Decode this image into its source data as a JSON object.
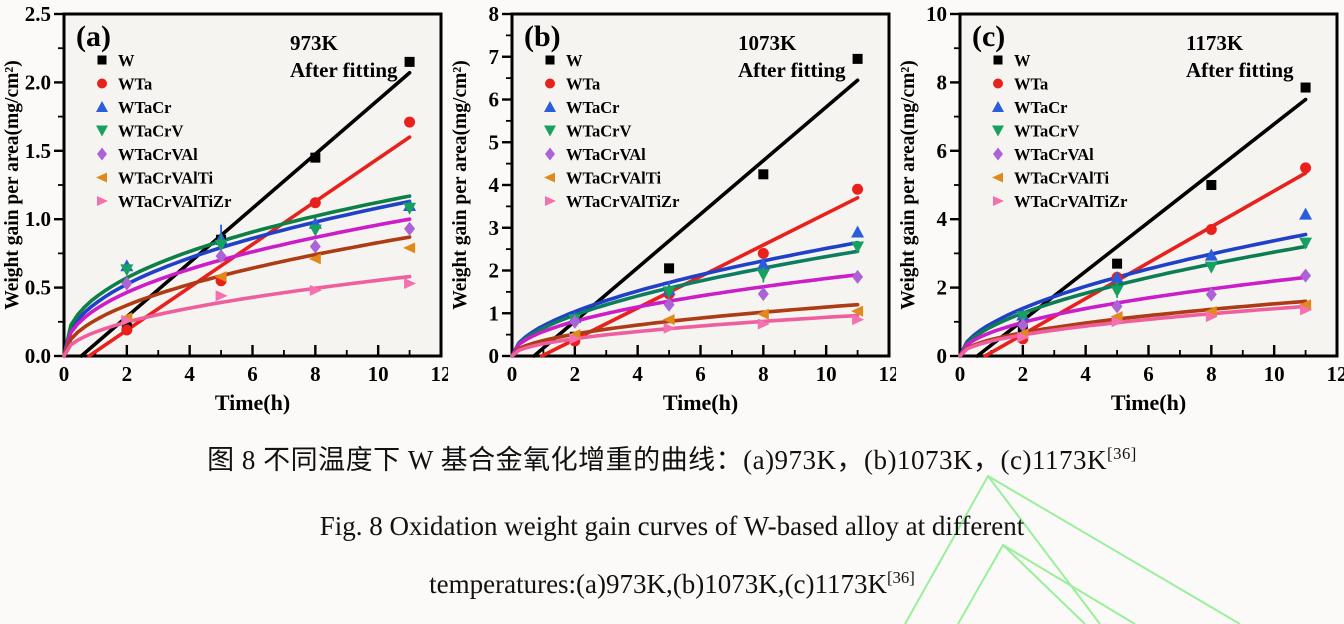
{
  "figure": {
    "caption_zh": "图 8 不同温度下 W 基合金氧化增重的曲线：(a)973K，(b)1073K，(c)1173K",
    "caption_en_line1": "Fig. 8 Oxidation weight gain curves of W-based alloy at different",
    "caption_en_line2": "temperatures:(a)973K,(b)1073K,(c)1173K",
    "ref_sup": "[36]"
  },
  "colors": {
    "plot_bg": "#f6f4f1",
    "frame": "#000000",
    "watermark_green": "#90ee90"
  },
  "chart_data": [
    {
      "type": "scatter",
      "panel_label": "(a)",
      "title": "973K",
      "subtitle": "After fitting",
      "xlabel": "Time(h)",
      "ylabel": "Weight gain per area(mg/cm²)",
      "xlim": [
        0,
        12
      ],
      "ylim": [
        0,
        2.5
      ],
      "x_major": 2,
      "y_major": 0.5,
      "x_ticks": [
        "0",
        "2",
        "4",
        "6",
        "8",
        "10",
        "12"
      ],
      "y_ticks": [
        "0.0",
        "0.5",
        "1.0",
        "1.5",
        "2.0",
        "2.5"
      ],
      "x": [
        2,
        5,
        8,
        11
      ],
      "legend_position": "top-left",
      "grid": false,
      "series": [
        {
          "name": "W",
          "marker": "square",
          "mcolor": "#000000",
          "lcolor": "#000000",
          "values": [
            0.22,
            0.85,
            1.45,
            2.15
          ],
          "fit": {
            "type": "lin",
            "t0": 0.55,
            "v11": 2.07
          }
        },
        {
          "name": "WTa",
          "marker": "circle",
          "mcolor": "#e8211d",
          "lcolor": "#e8211d",
          "values": [
            0.19,
            0.55,
            1.12,
            1.71
          ],
          "fit": {
            "type": "lin",
            "t0": 0.8,
            "v11": 1.6
          }
        },
        {
          "name": "WTaCr",
          "marker": "triangle-up",
          "mcolor": "#2a5cdb",
          "lcolor": "#2140c8",
          "values": [
            0.66,
            0.86,
            0.97,
            1.1
          ],
          "err": [
            0,
            0.1,
            0,
            0
          ],
          "fit": {
            "type": "pow",
            "a": 0.384,
            "b": 0.45
          }
        },
        {
          "name": "WTaCrV",
          "marker": "triangle-down",
          "mcolor": "#17a15e",
          "lcolor": "#0c8045",
          "values": [
            0.63,
            0.81,
            0.92,
            1.08
          ],
          "err": [
            0,
            0.08,
            0,
            0
          ],
          "fit": {
            "type": "pow",
            "a": 0.427,
            "b": 0.42
          }
        },
        {
          "name": "WTaCrVAl",
          "marker": "diamond",
          "mcolor": "#ab63d6",
          "lcolor": "#cb1ec9",
          "values": [
            0.53,
            0.73,
            0.8,
            0.93
          ],
          "fit": {
            "type": "pow",
            "a": 0.34,
            "b": 0.45
          }
        },
        {
          "name": "WTaCrVAlTi",
          "marker": "triangle-left",
          "mcolor": "#e2891b",
          "lcolor": "#ad3b14",
          "values": [
            0.28,
            0.58,
            0.71,
            0.79
          ],
          "fit": {
            "type": "pow",
            "a": 0.262,
            "b": 0.5
          }
        },
        {
          "name": "WTaCrVAlTiZr",
          "marker": "triangle-right",
          "mcolor": "#f470ae",
          "lcolor": "#ef5f9d",
          "values": [
            0.26,
            0.44,
            0.48,
            0.53
          ],
          "fit": {
            "type": "pow",
            "a": 0.175,
            "b": 0.5
          }
        }
      ]
    },
    {
      "type": "scatter",
      "panel_label": "(b)",
      "title": "1073K",
      "subtitle": "After fitting",
      "xlabel": "Time(h)",
      "ylabel": "Weight gain per area(mg/cm²)",
      "xlim": [
        0,
        12
      ],
      "ylim": [
        0,
        8
      ],
      "x_major": 2,
      "y_major": 1,
      "x_ticks": [
        "0",
        "2",
        "4",
        "6",
        "8",
        "10",
        "12"
      ],
      "y_ticks": [
        "0",
        "1",
        "2",
        "3",
        "4",
        "5",
        "6",
        "7",
        "8"
      ],
      "x": [
        2,
        5,
        8,
        11
      ],
      "legend_position": "top-left",
      "grid": false,
      "series": [
        {
          "name": "W",
          "marker": "square",
          "mcolor": "#000000",
          "lcolor": "#000000",
          "values": [
            0.45,
            2.05,
            4.25,
            6.95
          ],
          "fit": {
            "type": "lin",
            "t0": 0.7,
            "v11": 6.45
          }
        },
        {
          "name": "WTa",
          "marker": "circle",
          "mcolor": "#e8211d",
          "lcolor": "#e8211d",
          "values": [
            0.35,
            1.45,
            2.4,
            3.9
          ],
          "fit": {
            "type": "lin",
            "t0": 0.95,
            "v11": 3.7
          }
        },
        {
          "name": "WTaCr",
          "marker": "triangle-up",
          "mcolor": "#2a5cdb",
          "lcolor": "#2140c8",
          "values": [
            0.9,
            1.55,
            2.15,
            2.9
          ],
          "err": [
            0,
            0.2,
            0,
            0
          ],
          "fit": {
            "type": "pow",
            "a": 0.709,
            "b": 0.55
          }
        },
        {
          "name": "WTaCrV",
          "marker": "triangle-down",
          "mcolor": "#17a15e",
          "lcolor": "#0d7d62",
          "values": [
            0.85,
            1.5,
            1.9,
            2.55
          ],
          "err": [
            0,
            0.15,
            0.18,
            0
          ],
          "fit": {
            "type": "pow",
            "a": 0.655,
            "b": 0.55
          }
        },
        {
          "name": "WTaCrVAl",
          "marker": "diamond",
          "mcolor": "#ab63d6",
          "lcolor": "#cb1ec9",
          "values": [
            0.8,
            1.2,
            1.45,
            1.85
          ],
          "fit": {
            "type": "pow",
            "a": 0.573,
            "b": 0.5
          }
        },
        {
          "name": "WTaCrVAlTi",
          "marker": "triangle-left",
          "mcolor": "#e2891b",
          "lcolor": "#ad3b14",
          "values": [
            0.5,
            0.85,
            0.98,
            1.05
          ],
          "fit": {
            "type": "pow",
            "a": 0.362,
            "b": 0.5
          }
        },
        {
          "name": "WTaCrVAlTiZr",
          "marker": "triangle-right",
          "mcolor": "#f470ae",
          "lcolor": "#ef5f9d",
          "values": [
            0.4,
            0.65,
            0.75,
            0.85
          ],
          "fit": {
            "type": "pow",
            "a": 0.286,
            "b": 0.5
          }
        }
      ]
    },
    {
      "type": "scatter",
      "panel_label": "(c)",
      "title": "1173K",
      "subtitle": "After fitting",
      "xlabel": "Time(h)",
      "ylabel": "Weight gain per area(mg/cm²)",
      "xlim": [
        0,
        12
      ],
      "ylim": [
        0,
        10
      ],
      "x_major": 2,
      "y_major": 2,
      "x_ticks": [
        "0",
        "2",
        "4",
        "6",
        "8",
        "10",
        "12"
      ],
      "y_ticks": [
        "0",
        "2",
        "4",
        "6",
        "8",
        "10"
      ],
      "x": [
        2,
        5,
        8,
        11
      ],
      "legend_position": "top-left",
      "grid": false,
      "series": [
        {
          "name": "W",
          "marker": "square",
          "mcolor": "#000000",
          "lcolor": "#000000",
          "values": [
            0.8,
            2.7,
            5.0,
            7.85
          ],
          "fit": {
            "type": "lin",
            "t0": 0.55,
            "v11": 7.5
          }
        },
        {
          "name": "WTa",
          "marker": "circle",
          "mcolor": "#e8211d",
          "lcolor": "#e8211d",
          "values": [
            0.5,
            2.3,
            3.7,
            5.5
          ],
          "fit": {
            "type": "lin",
            "t0": 0.8,
            "v11": 5.35
          }
        },
        {
          "name": "WTaCr",
          "marker": "triangle-up",
          "mcolor": "#2a5cdb",
          "lcolor": "#2140c8",
          "values": [
            1.2,
            2.3,
            2.95,
            4.15
          ],
          "fit": {
            "type": "pow",
            "a": 0.95,
            "b": 0.55
          }
        },
        {
          "name": "WTaCrV",
          "marker": "triangle-down",
          "mcolor": "#17a15e",
          "lcolor": "#0d7d52",
          "values": [
            1.15,
            1.9,
            2.6,
            3.3
          ],
          "err": [
            0,
            0.2,
            0.15,
            0
          ],
          "fit": {
            "type": "pow",
            "a": 0.856,
            "b": 0.55
          }
        },
        {
          "name": "WTaCrVAl",
          "marker": "diamond",
          "mcolor": "#ab63d6",
          "lcolor": "#cb1ec9",
          "values": [
            0.9,
            1.45,
            1.8,
            2.35
          ],
          "err": [
            0,
            0.12,
            0,
            0
          ],
          "fit": {
            "type": "pow",
            "a": 0.693,
            "b": 0.5
          }
        },
        {
          "name": "WTaCrVAlTi",
          "marker": "triangle-left",
          "mcolor": "#e2891b",
          "lcolor": "#ad3b14",
          "values": [
            0.65,
            1.15,
            1.3,
            1.5
          ],
          "fit": {
            "type": "pow",
            "a": 0.482,
            "b": 0.5
          }
        },
        {
          "name": "WTaCrVAlTiZr",
          "marker": "triangle-right",
          "mcolor": "#f470ae",
          "lcolor": "#ef5f9d",
          "values": [
            0.55,
            1.0,
            1.15,
            1.35
          ],
          "fit": {
            "type": "pow",
            "a": 0.437,
            "b": 0.5
          }
        }
      ]
    }
  ]
}
